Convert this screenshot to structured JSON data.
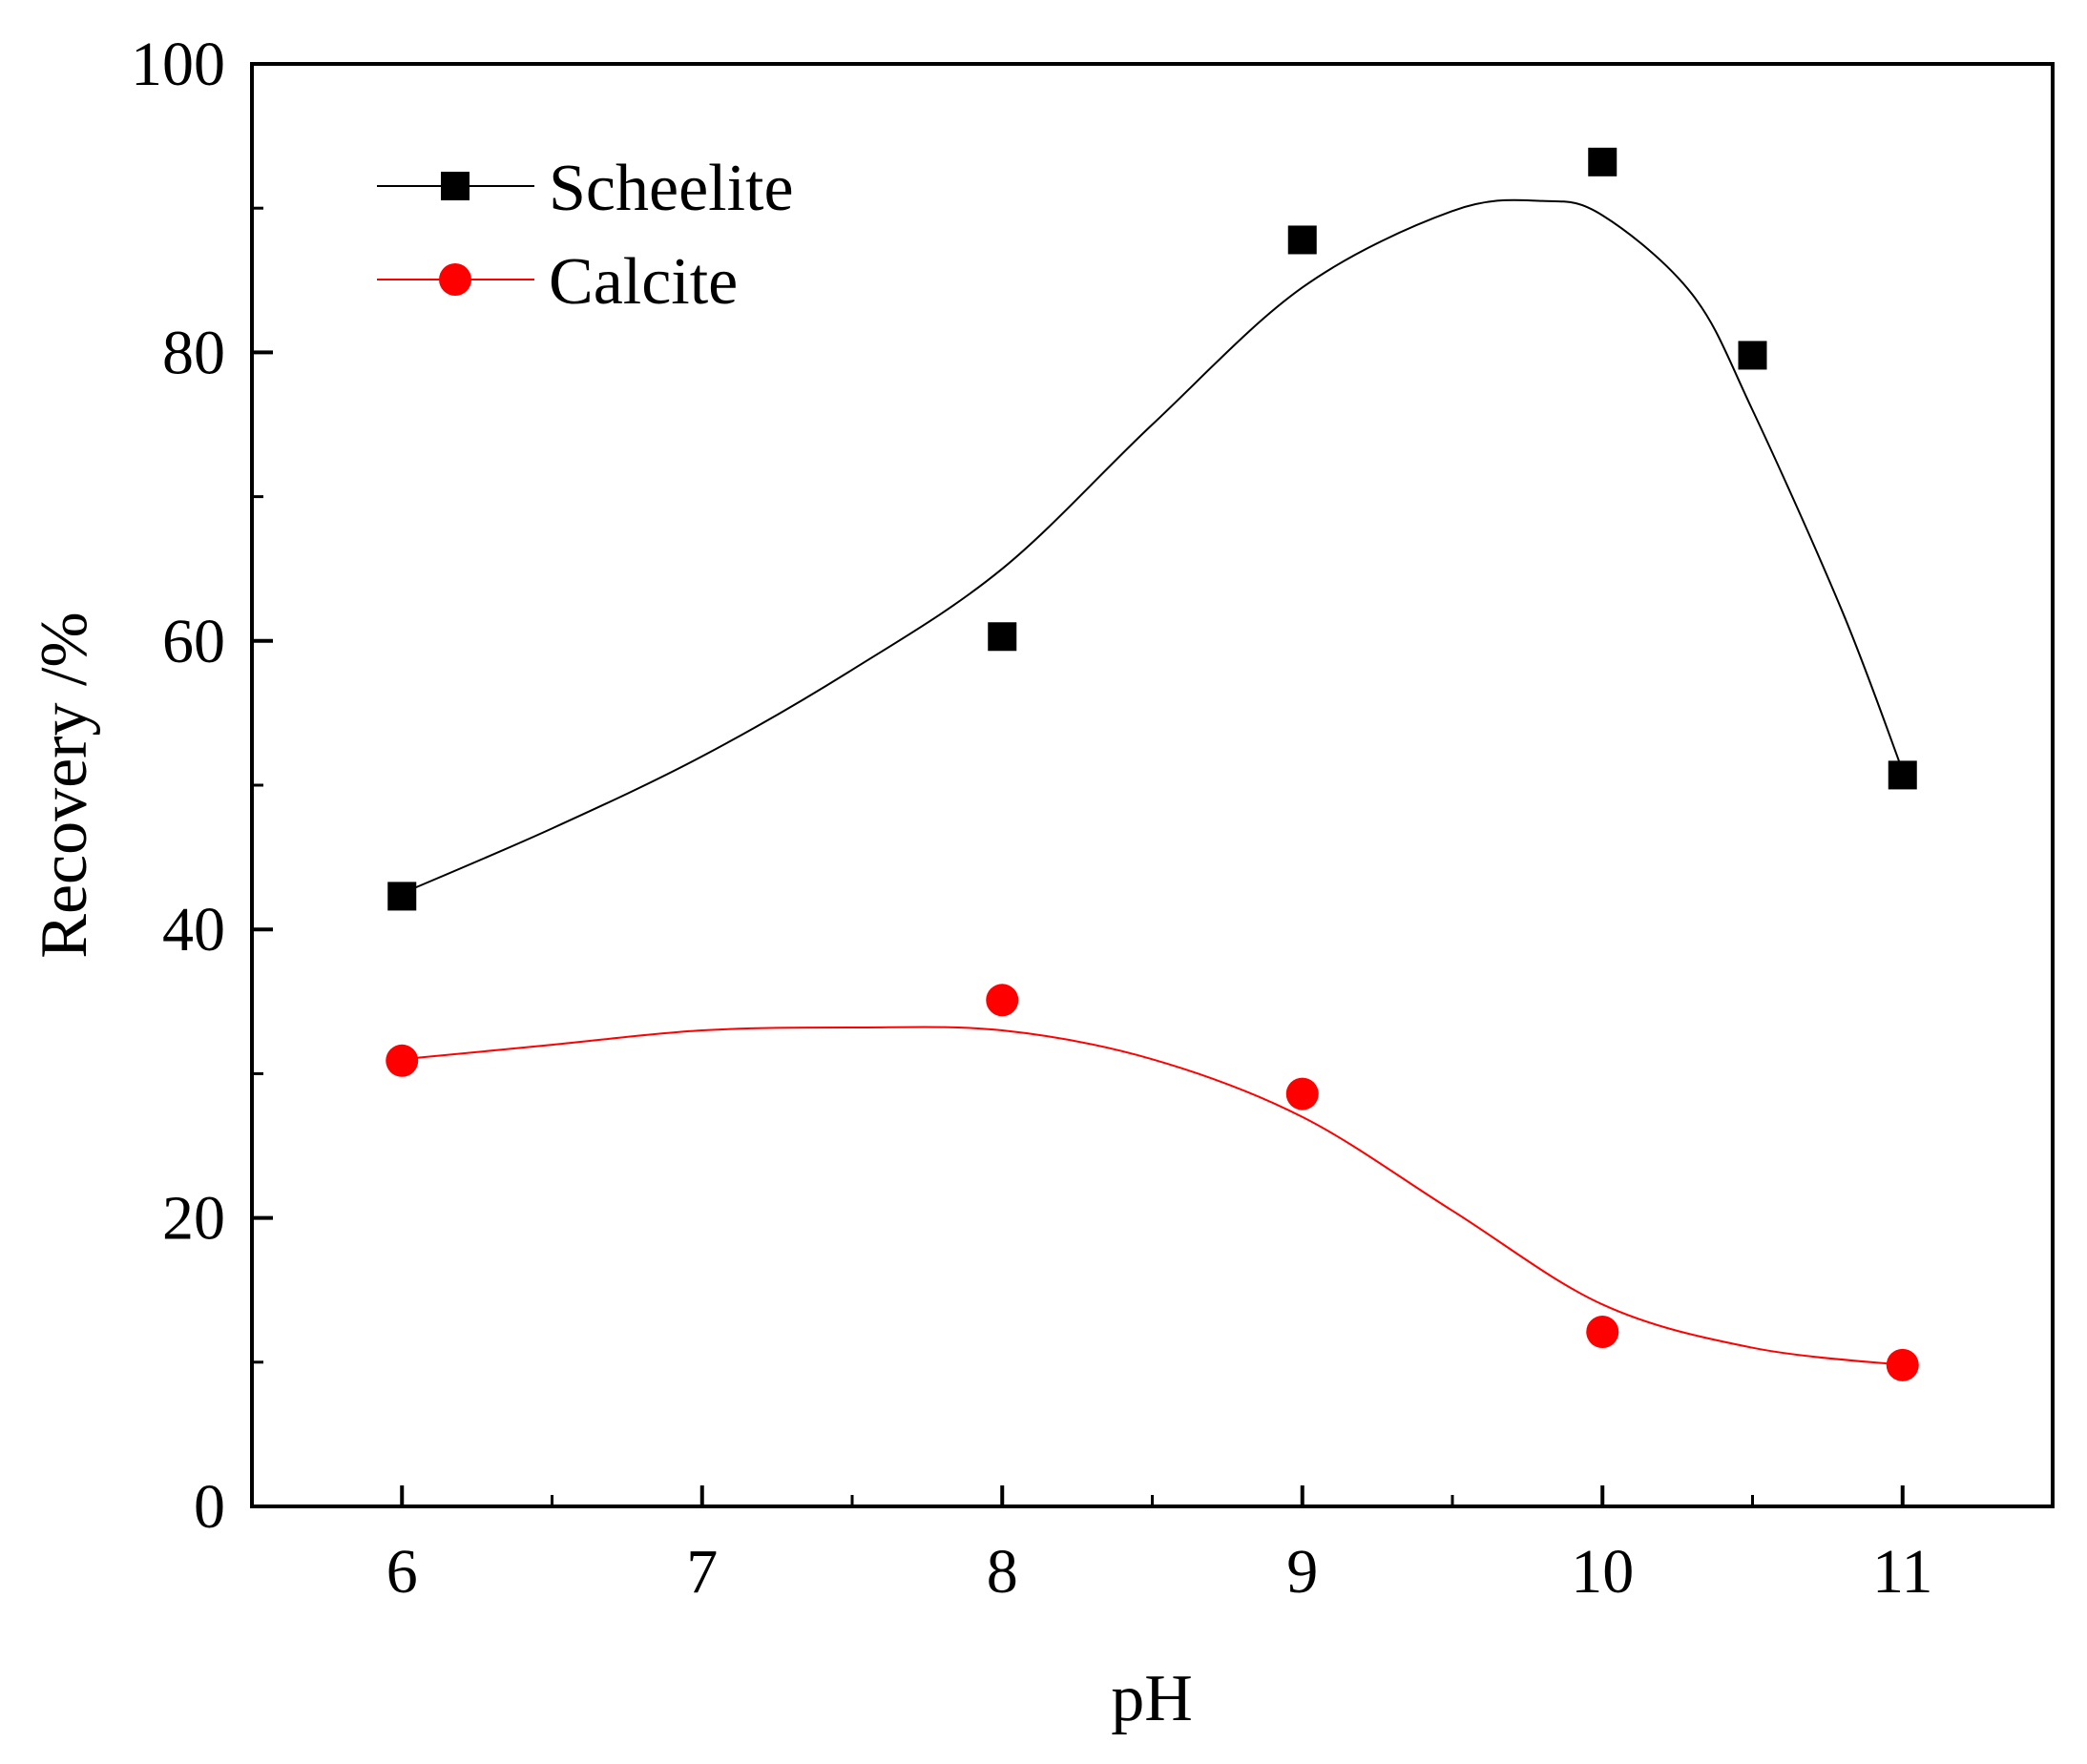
{
  "chart_data": {
    "type": "scatter",
    "title": "",
    "xlabel": "pH",
    "ylabel": "Recovery /%",
    "xlim": [
      5.5,
      11.5
    ],
    "ylim": [
      0,
      100
    ],
    "xticks": [
      6,
      7,
      8,
      9,
      10,
      11
    ],
    "yticks": [
      0,
      20,
      40,
      60,
      80,
      100
    ],
    "xtick_labels": [
      "6",
      "7",
      "8",
      "9",
      "10",
      "11"
    ],
    "ytick_labels": [
      "0",
      "20",
      "40",
      "60",
      "80",
      "100"
    ],
    "grid": false,
    "legend_position": "top-left",
    "series": [
      {
        "name": "Scheelite",
        "marker": "square",
        "color": "#000000",
        "x": [
          6,
          8,
          9,
          10,
          10.5,
          11
        ],
        "y": [
          42.3,
          60.3,
          87.8,
          93.2,
          79.8,
          50.7
        ],
        "fit_x": [
          6,
          6.5,
          7,
          7.5,
          8,
          8.5,
          9,
          9.5,
          9.8,
          10,
          10.3,
          10.5,
          10.8,
          11
        ],
        "fit_y": [
          42.5,
          47,
          52,
          58,
          65,
          75,
          84.5,
          89.8,
          90.5,
          89.5,
          84,
          76,
          62,
          51
        ]
      },
      {
        "name": "Calcite",
        "marker": "circle",
        "color": "#ff0000",
        "x": [
          6,
          8,
          9,
          10,
          11
        ],
        "y": [
          30.9,
          35.1,
          28.6,
          12.1,
          9.8
        ],
        "fit_x": [
          6,
          6.5,
          7,
          7.5,
          8,
          8.5,
          9,
          9.5,
          10,
          10.5,
          11
        ],
        "fit_y": [
          31,
          32,
          33,
          33.2,
          33,
          31,
          27,
          20.5,
          14,
          11,
          9.8
        ]
      }
    ]
  }
}
